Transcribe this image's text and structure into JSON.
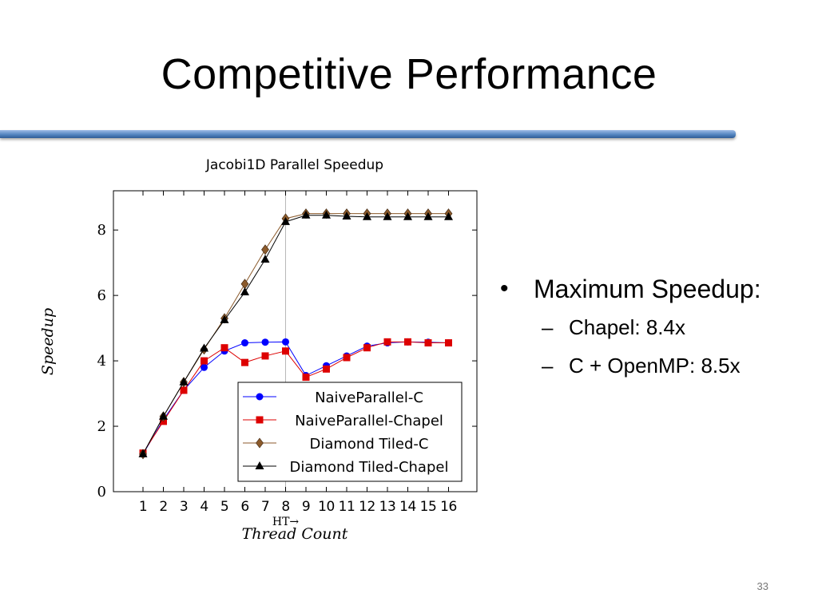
{
  "slide": {
    "title": "Competitive Performance",
    "page_number": "33",
    "bullets": {
      "main": "Maximum Speedup:",
      "sub": [
        "Chapel: 8.4x",
        "C + OpenMP: 8.5x"
      ]
    }
  },
  "colors": {
    "divider": "#4f81bd",
    "naive_c": "#0000ff",
    "naive_chapel": "#dd0000",
    "diamond_c": "#8b5a2b",
    "diamond_chapel": "#000000"
  },
  "chart_data": {
    "type": "line",
    "title": "Jacobi1D Parallel Speedup",
    "xlabel": "Thread Count",
    "ylabel": "Speedup",
    "annotation": "HT→",
    "x": [
      1,
      2,
      3,
      4,
      5,
      6,
      7,
      8,
      9,
      10,
      11,
      12,
      13,
      14,
      15,
      16
    ],
    "ylim": [
      0,
      9.2
    ],
    "yticks": [
      0,
      2,
      4,
      6,
      8
    ],
    "vertical_reference_line_x": 8,
    "grid": false,
    "legend_position": "bottom-right",
    "series": [
      {
        "name": "NaiveParallel-C",
        "color": "#0000ff",
        "marker": "circle",
        "values": [
          1.15,
          2.2,
          3.1,
          3.8,
          4.3,
          4.55,
          4.57,
          4.58,
          3.55,
          3.85,
          4.15,
          4.45,
          4.55,
          4.58,
          4.57,
          4.55
        ]
      },
      {
        "name": "NaiveParallel-Chapel",
        "color": "#dd0000",
        "marker": "square",
        "values": [
          1.18,
          2.15,
          3.1,
          4.0,
          4.4,
          3.95,
          4.15,
          4.3,
          3.5,
          3.75,
          4.1,
          4.4,
          4.58,
          4.58,
          4.55,
          4.55
        ]
      },
      {
        "name": "Diamond Tiled-C",
        "color": "#8b5a2b",
        "marker": "diamond",
        "values": [
          1.15,
          2.3,
          3.35,
          4.35,
          5.3,
          6.35,
          7.4,
          8.35,
          8.5,
          8.5,
          8.5,
          8.5,
          8.5,
          8.5,
          8.5,
          8.5
        ]
      },
      {
        "name": "Diamond Tiled-Chapel",
        "color": "#000000",
        "marker": "triangle",
        "values": [
          1.15,
          2.3,
          3.35,
          4.38,
          5.25,
          6.1,
          7.1,
          8.25,
          8.45,
          8.45,
          8.42,
          8.4,
          8.4,
          8.4,
          8.4,
          8.4
        ]
      }
    ]
  }
}
